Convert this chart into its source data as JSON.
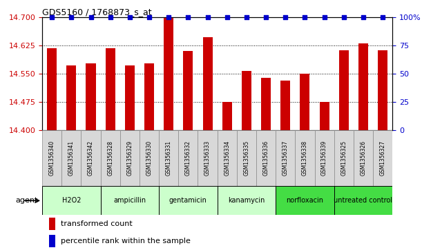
{
  "title": "GDS5160 / 1768873_s_at",
  "samples": [
    "GSM1356340",
    "GSM1356341",
    "GSM1356342",
    "GSM1356328",
    "GSM1356329",
    "GSM1356330",
    "GSM1356331",
    "GSM1356332",
    "GSM1356333",
    "GSM1356334",
    "GSM1356335",
    "GSM1356336",
    "GSM1356337",
    "GSM1356338",
    "GSM1356339",
    "GSM1356325",
    "GSM1356326",
    "GSM1356327"
  ],
  "values": [
    14.619,
    14.573,
    14.578,
    14.619,
    14.573,
    14.578,
    14.7,
    14.61,
    14.648,
    14.475,
    14.558,
    14.54,
    14.532,
    14.55,
    14.475,
    14.612,
    14.631,
    14.612
  ],
  "percentile_ranks": [
    100,
    100,
    100,
    100,
    100,
    100,
    100,
    100,
    100,
    100,
    100,
    100,
    100,
    100,
    100,
    100,
    100,
    100
  ],
  "groups": [
    {
      "label": "H2O2",
      "start": 0,
      "end": 3,
      "color": "#ccffcc"
    },
    {
      "label": "ampicillin",
      "start": 3,
      "end": 6,
      "color": "#ccffcc"
    },
    {
      "label": "gentamicin",
      "start": 6,
      "end": 9,
      "color": "#ccffcc"
    },
    {
      "label": "kanamycin",
      "start": 9,
      "end": 12,
      "color": "#ccffcc"
    },
    {
      "label": "norfloxacin",
      "start": 12,
      "end": 15,
      "color": "#44dd44"
    },
    {
      "label": "untreated control",
      "start": 15,
      "end": 18,
      "color": "#44dd44"
    }
  ],
  "ylim_left": [
    14.4,
    14.7
  ],
  "yticks_left": [
    14.4,
    14.475,
    14.55,
    14.625,
    14.7
  ],
  "ylim_right": [
    0,
    100
  ],
  "yticks_right": [
    0,
    25,
    50,
    75,
    100
  ],
  "bar_color": "#cc0000",
  "dot_color": "#0000cc",
  "bar_width": 0.5,
  "legend_red": "transformed count",
  "legend_blue": "percentile rank within the sample",
  "sample_bg_color": "#d8d8d8",
  "sample_border_color": "#888888"
}
